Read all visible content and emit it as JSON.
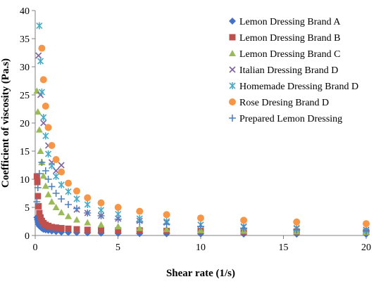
{
  "chart_data": {
    "type": "scatter",
    "xlabel": "Shear rate (1/s)",
    "ylabel": "Coefficient of viscosity  (Pa.s)",
    "xlim": [
      0,
      20
    ],
    "ylim": [
      0,
      40
    ],
    "xticks": [
      "0",
      "5",
      "10",
      "15",
      "20"
    ],
    "yticks": [
      "0",
      "5",
      "10",
      "15",
      "20",
      "25",
      "30",
      "35",
      "40"
    ],
    "grid": false,
    "legend": "inside top-right",
    "series": [
      {
        "name": "Lemon Dressing  Brand A",
        "marker": "diamond",
        "color": "#4472C4",
        "x": [
          0.1,
          0.13,
          0.16,
          0.2,
          0.25,
          0.32,
          0.4,
          0.5,
          0.63,
          0.79,
          1.0,
          1.26,
          1.58,
          2.0,
          2.51,
          3.16,
          3.98,
          5.01,
          6.31,
          7.94,
          10.0,
          12.6,
          15.8,
          20.0
        ],
        "y": [
          3.2,
          2.8,
          2.4,
          2.0,
          1.7,
          1.5,
          1.3,
          1.1,
          1.0,
          0.9,
          0.8,
          0.7,
          0.6,
          0.55,
          0.5,
          0.45,
          0.4,
          0.37,
          0.33,
          0.3,
          0.28,
          0.25,
          0.23,
          0.2
        ]
      },
      {
        "name": "Lemon Dressing  Brand B",
        "marker": "square",
        "color": "#C0504D",
        "x": [
          0.1,
          0.13,
          0.16,
          0.2,
          0.25,
          0.32,
          0.4,
          0.5,
          0.63,
          0.79,
          1.0,
          1.26,
          1.58,
          2.0,
          2.51,
          3.16,
          3.98,
          5.01,
          6.31,
          7.94,
          10.0,
          12.6,
          15.8,
          20.0
        ],
        "y": [
          10.5,
          9.5,
          7.0,
          5.2,
          4.0,
          3.2,
          2.6,
          2.2,
          1.9,
          1.7,
          1.5,
          1.4,
          1.3,
          1.2,
          1.1,
          1.0,
          1.0,
          0.9,
          0.9,
          0.8,
          0.8,
          0.7,
          0.7,
          0.6
        ]
      },
      {
        "name": "Lemon Dressing  Brand C",
        "marker": "triangle",
        "color": "#9BBB59",
        "x": [
          0.1,
          0.16,
          0.25,
          0.32,
          0.4,
          0.5,
          0.63,
          0.79,
          1.0,
          1.26,
          1.58,
          2.0,
          2.51,
          3.16,
          3.98,
          5.01,
          6.31,
          7.94,
          10.0,
          12.6,
          15.8,
          20.0
        ],
        "y": [
          25.7,
          22.0,
          18.8,
          15.0,
          13.0,
          10.6,
          8.8,
          7.3,
          6.0,
          5.0,
          4.1,
          3.4,
          2.8,
          2.3,
          1.9,
          1.6,
          1.3,
          1.1,
          0.9,
          0.8,
          0.7,
          0.6
        ]
      },
      {
        "name": "Italian Dressing  Brand D",
        "marker": "x",
        "color": "#8064A2",
        "x": [
          0.2,
          0.32,
          0.5,
          0.79,
          1.0,
          1.26,
          1.58,
          2.51,
          3.16,
          3.98,
          5.01,
          6.31,
          7.94,
          10.0,
          12.6,
          15.8,
          20.0
        ],
        "y": [
          32.0,
          25.0,
          20.0,
          16.0,
          13.0,
          11.5,
          12.5,
          4.6,
          4.0,
          3.5,
          3.0,
          2.6,
          2.3,
          1.9,
          1.6,
          1.3,
          1.0
        ]
      },
      {
        "name": "Homemade Dressing  Brand D",
        "marker": "asterisk",
        "color": "#4BACC6",
        "x": [
          0.25,
          0.32,
          0.4,
          0.5,
          0.63,
          0.79,
          1.0,
          1.26,
          1.58,
          2.0,
          2.51,
          3.16,
          3.98,
          5.01,
          6.31,
          7.94,
          10.0,
          12.6,
          15.8,
          20.0
        ],
        "y": [
          37.3,
          31.0,
          25.5,
          21.0,
          17.7,
          14.5,
          12.4,
          10.5,
          9.0,
          7.8,
          6.5,
          5.5,
          4.5,
          3.8,
          3.0,
          2.5,
          1.9,
          1.5,
          1.2,
          0.9
        ]
      },
      {
        "name": "Rose Dresing  Brand D",
        "marker": "circle",
        "color": "#F79646",
        "x": [
          0.4,
          0.5,
          0.63,
          0.79,
          1.0,
          1.26,
          1.58,
          2.0,
          2.51,
          3.16,
          3.98,
          5.01,
          6.31,
          7.94,
          10.0,
          12.6,
          15.8,
          20.0
        ],
        "y": [
          33.3,
          27.7,
          23.0,
          19.2,
          16.0,
          13.5,
          11.3,
          9.3,
          7.9,
          6.7,
          5.8,
          5.0,
          4.3,
          3.7,
          3.1,
          2.7,
          2.4,
          2.1
        ]
      },
      {
        "name": "Prepared Lemon Dressing",
        "marker": "plus",
        "color": "#4F81BD",
        "x": [
          0.1,
          0.16,
          0.25,
          0.4,
          0.63,
          0.79,
          1.0,
          1.26,
          1.58,
          2.0,
          2.51,
          3.16,
          3.98,
          5.01,
          6.31,
          7.94,
          10.0,
          12.6,
          15.8,
          20.0
        ],
        "y": [
          6.0,
          8.5,
          11.0,
          13.0,
          11.5,
          10.0,
          8.7,
          7.5,
          6.5,
          5.5,
          4.8,
          4.0,
          3.5,
          2.9,
          2.4,
          2.0,
          1.6,
          1.3,
          1.0,
          0.8
        ]
      }
    ]
  }
}
